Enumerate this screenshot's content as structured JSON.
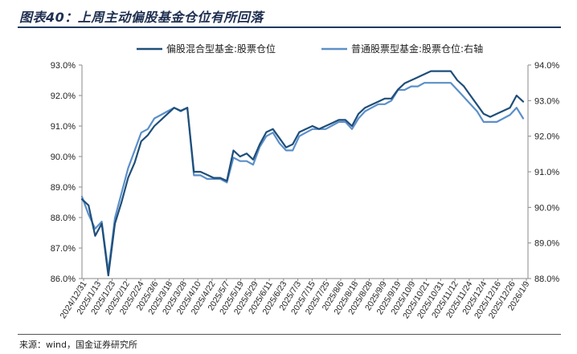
{
  "header": {
    "title": "图表40：上周主动偏股基金仓位有所回落"
  },
  "footer": {
    "source": "来源：wind，国金证券研究所"
  },
  "chart_data": {
    "type": "line",
    "title": "图表40：上周主动偏股基金仓位有所回落",
    "legend_position": "top-center",
    "grid": false,
    "x_tick_labels": [
      "2024/12/31",
      "2025/1/13",
      "2025/1/23",
      "2025/2/12",
      "2025/2/24",
      "2025/3/6",
      "2025/3/18",
      "2025/3/28",
      "2025/4/10",
      "2025/4/22",
      "2025/5/7",
      "2025/5/19",
      "2025/5/29",
      "2025/6/11",
      "2025/6/23",
      "2025/7/3",
      "2025/7/15",
      "2025/7/25",
      "2025/8/6",
      "2025/8/18",
      "2025/8/28",
      "2025/9/9",
      "2025/9/19",
      "2025/10/9",
      "2025/10/21",
      "2025/10/31",
      "2025/11/12",
      "2025/11/24",
      "2025/12/4",
      "2025/12/16",
      "2025/12/26",
      "2026/1/9"
    ],
    "y_left": {
      "ticks": [
        "86.0%",
        "87.0%",
        "88.0%",
        "89.0%",
        "90.0%",
        "91.0%",
        "92.0%",
        "93.0%"
      ],
      "range": [
        86,
        93
      ]
    },
    "y_right": {
      "ticks": [
        "88.0%",
        "89.0%",
        "90.0%",
        "91.0%",
        "92.0%",
        "93.0%",
        "94.0%"
      ],
      "range": [
        88,
        94
      ]
    },
    "series": [
      {
        "name": "偏股混合型基金:股票仓位",
        "axis": "left",
        "color": "#1f4e79",
        "values": [
          88.6,
          88.4,
          87.4,
          87.8,
          86.1,
          87.8,
          88.5,
          89.3,
          89.8,
          90.5,
          90.7,
          91.0,
          91.2,
          91.4,
          91.6,
          91.5,
          91.6,
          89.5,
          89.5,
          89.4,
          89.3,
          89.3,
          89.2,
          90.2,
          90.0,
          90.1,
          89.9,
          90.4,
          90.8,
          90.9,
          90.6,
          90.3,
          90.4,
          90.8,
          90.9,
          91.0,
          90.9,
          91.0,
          91.1,
          91.2,
          91.2,
          91.0,
          91.4,
          91.6,
          91.7,
          91.8,
          91.9,
          91.9,
          92.2,
          92.4,
          92.5,
          92.6,
          92.7,
          92.8,
          92.8,
          92.8,
          92.8,
          92.5,
          92.3,
          92.0,
          91.7,
          91.4,
          91.3,
          91.4,
          91.5,
          91.6,
          92.0,
          91.8
        ]
      },
      {
        "name": "普通股票型基金:股票仓位:右轴",
        "axis": "right",
        "color": "#5b8fc9",
        "values": [
          90.3,
          89.8,
          89.4,
          89.6,
          88.2,
          89.7,
          90.4,
          91.1,
          91.6,
          92.1,
          92.2,
          92.5,
          92.6,
          92.7,
          92.8,
          92.7,
          92.8,
          90.9,
          90.9,
          90.8,
          90.8,
          90.8,
          90.7,
          91.4,
          91.3,
          91.3,
          91.2,
          91.7,
          92.0,
          92.1,
          91.8,
          91.6,
          91.6,
          92.0,
          92.1,
          92.2,
          92.2,
          92.2,
          92.3,
          92.4,
          92.4,
          92.2,
          92.5,
          92.7,
          92.8,
          92.9,
          92.9,
          93.0,
          93.3,
          93.3,
          93.4,
          93.4,
          93.5,
          93.5,
          93.5,
          93.5,
          93.5,
          93.3,
          93.1,
          92.9,
          92.7,
          92.4,
          92.4,
          92.4,
          92.5,
          92.6,
          92.8,
          92.5
        ]
      }
    ]
  }
}
